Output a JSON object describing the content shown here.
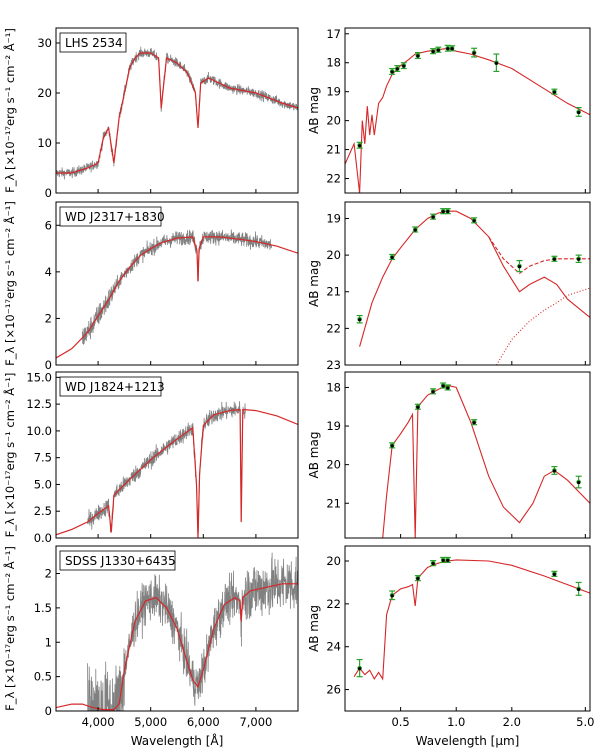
{
  "figure": {
    "left_xlabel": "Wavelength [Å]",
    "right_xlabel": "Wavelength [μm]",
    "left_ylabel": "F_λ [×10⁻¹⁷erg s⁻¹ cm⁻² Å⁻¹]",
    "right_ylabel": "AB mag",
    "colors": {
      "model": "#d62728",
      "spectrum": "#808080",
      "photometry": "#2ca02c",
      "points": "#000000"
    }
  },
  "chart_data": [
    {
      "type": "line",
      "panel": "spectrum",
      "annotation": "LHS 2534",
      "xlim": [
        3200,
        7800
      ],
      "ylim": [
        0,
        33
      ],
      "yticks": [
        0,
        10,
        20,
        30
      ],
      "xticks": [
        4000,
        5000,
        6000,
        7000
      ],
      "xtick_labels": [
        "4,000",
        "5,000",
        "6,000",
        "7,000"
      ],
      "model": {
        "x": [
          3200,
          3500,
          3800,
          4000,
          4100,
          4200,
          4300,
          4400,
          4500,
          4600,
          4700,
          4800,
          5000,
          5150,
          5200,
          5300,
          5500,
          5700,
          5850,
          5900,
          5950,
          6100,
          6300,
          6500,
          7000,
          7500,
          7800
        ],
        "y": [
          4,
          4,
          5,
          6,
          11,
          13,
          6,
          15,
          20,
          25,
          27,
          28,
          28,
          27,
          17,
          27,
          26,
          24,
          20,
          13,
          22,
          23,
          22,
          21,
          20,
          18,
          17
        ]
      },
      "spectrum": {
        "xrange": [
          3200,
          7800
        ]
      }
    },
    {
      "type": "line",
      "panel": "spectrum",
      "annotation": "WD J2317+1830",
      "xlim": [
        3200,
        7800
      ],
      "ylim": [
        0,
        7.0
      ],
      "yticks": [
        0,
        2,
        4,
        6
      ],
      "xticks": [
        4000,
        5000,
        6000,
        7000
      ],
      "xtick_labels": [
        "4,000",
        "5,000",
        "6,000",
        "7,000"
      ],
      "model": {
        "x": [
          3200,
          3500,
          3800,
          4000,
          4200,
          4400,
          4600,
          4800,
          5000,
          5200,
          5500,
          5800,
          5880,
          5900,
          5920,
          6000,
          6300,
          6700,
          7000,
          7400,
          7800
        ],
        "y": [
          0.3,
          0.7,
          1.4,
          2.1,
          2.8,
          3.6,
          4.2,
          4.7,
          5.0,
          5.25,
          5.45,
          5.5,
          4.9,
          3.6,
          5.0,
          5.5,
          5.5,
          5.4,
          5.3,
          5.1,
          4.8
        ]
      },
      "spectrum": {
        "xrange": [
          3700,
          7300
        ]
      }
    },
    {
      "type": "line",
      "panel": "spectrum",
      "annotation": "WD J1824+1213",
      "xlim": [
        3200,
        7800
      ],
      "ylim": [
        0,
        15.5
      ],
      "yticks": [
        0.0,
        2.5,
        5.0,
        7.5,
        10.0,
        12.5,
        15.0
      ],
      "ytick_labels": [
        "0.0",
        "2.5",
        "5.0",
        "7.5",
        "10.0",
        "12.5",
        "15.0"
      ],
      "xticks": [
        4000,
        5000,
        6000,
        7000
      ],
      "xtick_labels": [
        "4,000",
        "5,000",
        "6,000",
        "7,000"
      ],
      "model": {
        "x": [
          3200,
          3500,
          3800,
          4000,
          4200,
          4250,
          4300,
          4500,
          4800,
          5000,
          5300,
          5600,
          5800,
          5870,
          5900,
          5930,
          6000,
          6200,
          6500,
          6700,
          6720,
          6750,
          7000,
          7400,
          7800
        ],
        "y": [
          0.3,
          0.8,
          1.5,
          2.3,
          3.0,
          0.5,
          4.0,
          5.0,
          6.4,
          7.3,
          8.5,
          9.6,
          10.3,
          5.0,
          0,
          6.0,
          10.5,
          11.5,
          11.9,
          12.0,
          1.5,
          12.0,
          11.9,
          11.4,
          10.6
        ]
      },
      "spectrum": {
        "xrange": [
          3800,
          6800
        ]
      }
    },
    {
      "type": "line",
      "panel": "spectrum",
      "annotation": "SDSS J1330+6435",
      "xlim": [
        3200,
        7800
      ],
      "ylim": [
        0,
        2.4
      ],
      "yticks": [
        0.0,
        0.5,
        1.0,
        1.5,
        2.0
      ],
      "xticks": [
        4000,
        5000,
        6000,
        7000
      ],
      "xtick_labels": [
        "4,000",
        "5,000",
        "6,000",
        "7,000"
      ],
      "model": {
        "x": [
          3200,
          3500,
          3700,
          3900,
          4100,
          4300,
          4400,
          4500,
          4700,
          4900,
          5100,
          5300,
          5500,
          5700,
          5800,
          5900,
          6000,
          6200,
          6400,
          6600,
          6700,
          6720,
          6750,
          6900,
          7200,
          7500,
          7800
        ],
        "y": [
          0.05,
          0.1,
          0.1,
          0.05,
          0.02,
          0.02,
          0.1,
          0.6,
          1.3,
          1.6,
          1.65,
          1.5,
          1.2,
          0.7,
          0.45,
          0.35,
          0.6,
          1.2,
          1.55,
          1.65,
          1.6,
          1.3,
          1.65,
          1.75,
          1.8,
          1.85,
          1.85
        ]
      },
      "spectrum": {
        "xrange": [
          3800,
          7800
        ]
      }
    },
    {
      "type": "scatter",
      "panel": "sed",
      "xlim": [
        0.25,
        5.3
      ],
      "xscale": "log",
      "ylim": [
        16.8,
        22.5
      ],
      "yinvert": true,
      "yticks": [
        17,
        18,
        19,
        20,
        21,
        22
      ],
      "xticks": [
        0.5,
        1.0,
        2.0,
        5.0
      ],
      "xtick_labels": [
        "0.5",
        "1.0",
        "2.0",
        "5.0"
      ],
      "model": {
        "x": [
          0.25,
          0.28,
          0.3,
          0.31,
          0.32,
          0.33,
          0.34,
          0.35,
          0.36,
          0.38,
          0.4,
          0.42,
          0.45,
          0.5,
          0.55,
          0.6,
          0.7,
          0.8,
          0.9,
          1.0,
          1.2,
          1.5,
          2.0,
          3.0,
          4.0,
          5.3
        ],
        "y": [
          21.5,
          20.8,
          22.5,
          20.0,
          20.8,
          19.5,
          20.5,
          19.8,
          20.5,
          19.4,
          19.2,
          18.8,
          18.4,
          18.1,
          17.9,
          17.7,
          17.6,
          17.55,
          17.5,
          17.6,
          17.7,
          17.9,
          18.2,
          18.9,
          19.4,
          19.8
        ]
      },
      "photometry": {
        "x": [
          0.3,
          0.45,
          0.48,
          0.52,
          0.62,
          0.75,
          0.8,
          0.9,
          0.95,
          1.25,
          1.65,
          3.4,
          4.6
        ],
        "y": [
          20.85,
          18.3,
          18.2,
          18.1,
          17.75,
          17.6,
          17.55,
          17.5,
          17.5,
          17.65,
          18.0,
          19.0,
          19.7
        ],
        "err": [
          0.1,
          0.1,
          0.1,
          0.1,
          0.1,
          0.05,
          0.05,
          0.1,
          0.05,
          0.15,
          0.3,
          0.08,
          0.15
        ]
      }
    },
    {
      "type": "scatter",
      "panel": "sed",
      "xlim": [
        0.25,
        5.3
      ],
      "xscale": "log",
      "ylim": [
        18.55,
        23.0
      ],
      "yinvert": true,
      "yticks": [
        19,
        20,
        21,
        22,
        23
      ],
      "xticks": [
        0.5,
        1.0,
        2.0,
        5.0
      ],
      "xtick_labels": [
        "0.5",
        "1.0",
        "2.0",
        "5.0"
      ],
      "model": {
        "x": [
          0.3,
          0.35,
          0.4,
          0.45,
          0.5,
          0.6,
          0.7,
          0.8,
          0.9,
          1.0,
          1.2,
          1.5,
          1.8,
          2.2,
          2.5,
          3.0,
          3.5,
          4.0,
          5.3
        ],
        "y": [
          22.5,
          21.3,
          20.6,
          20.1,
          19.8,
          19.3,
          19.0,
          18.85,
          18.8,
          18.8,
          19.0,
          19.5,
          20.3,
          21.0,
          20.8,
          20.6,
          20.8,
          21.2,
          21.7
        ]
      },
      "model_dashed": {
        "x": [
          1.5,
          1.8,
          2.2,
          2.5,
          3.0,
          3.5,
          4.0,
          5.3
        ],
        "y": [
          19.5,
          20.1,
          20.5,
          20.3,
          20.15,
          20.1,
          20.1,
          20.1
        ]
      },
      "model_dotted": {
        "x": [
          1.65,
          2.0,
          2.5,
          3.0,
          3.5,
          4.0,
          5.3
        ],
        "y": [
          23.0,
          22.3,
          21.8,
          21.5,
          21.3,
          21.1,
          20.9
        ]
      },
      "photometry": {
        "x": [
          0.3,
          0.45,
          0.6,
          0.75,
          0.85,
          0.9,
          1.25,
          2.2,
          3.4,
          4.6
        ],
        "y": [
          21.75,
          20.05,
          19.3,
          18.95,
          18.8,
          18.8,
          19.05,
          20.3,
          20.1,
          20.1
        ],
        "err": [
          0.1,
          0.05,
          0.05,
          0.05,
          0.05,
          0.05,
          0.05,
          0.15,
          0.05,
          0.1
        ]
      }
    },
    {
      "type": "scatter",
      "panel": "sed",
      "xlim": [
        0.25,
        5.3
      ],
      "xscale": "log",
      "ylim": [
        17.6,
        21.9
      ],
      "yinvert": true,
      "yticks": [
        18,
        19,
        20,
        21
      ],
      "xticks": [
        0.5,
        1.0,
        2.0,
        5.0
      ],
      "xtick_labels": [
        "0.5",
        "1.0",
        "2.0",
        "5.0"
      ],
      "model": {
        "x": [
          0.4,
          0.42,
          0.45,
          0.5,
          0.55,
          0.58,
          0.6,
          0.62,
          0.7,
          0.8,
          0.9,
          1.0,
          1.2,
          1.5,
          1.8,
          2.2,
          2.6,
          3.0,
          3.4,
          4.0,
          5.3
        ],
        "y": [
          21.9,
          20.8,
          19.5,
          19.2,
          18.9,
          18.7,
          21.9,
          18.5,
          18.2,
          18.05,
          17.95,
          18.0,
          18.9,
          20.3,
          21.1,
          21.5,
          21.0,
          20.3,
          20.15,
          20.4,
          21.0
        ]
      },
      "photometry": {
        "x": [
          0.45,
          0.62,
          0.75,
          0.85,
          0.9,
          1.25,
          3.4,
          4.6
        ],
        "y": [
          19.5,
          18.5,
          18.1,
          17.95,
          18.0,
          18.9,
          20.15,
          20.45
        ],
        "err": [
          0.05,
          0.05,
          0.05,
          0.05,
          0.05,
          0.05,
          0.1,
          0.15
        ]
      }
    },
    {
      "type": "scatter",
      "panel": "sed",
      "xlim": [
        0.25,
        5.3
      ],
      "xscale": "log",
      "ylim": [
        19.3,
        27.0
      ],
      "yinvert": true,
      "yticks": [
        20,
        22,
        24,
        26
      ],
      "xticks": [
        0.5,
        1.0,
        2.0,
        5.0
      ],
      "xtick_labels": [
        "0.5",
        "1.0",
        "2.0",
        "5.0"
      ],
      "model": {
        "x": [
          0.28,
          0.3,
          0.32,
          0.34,
          0.36,
          0.38,
          0.4,
          0.42,
          0.45,
          0.5,
          0.55,
          0.58,
          0.6,
          0.62,
          0.7,
          0.8,
          0.9,
          1.0,
          1.5,
          2.0,
          3.0,
          4.0,
          5.3
        ],
        "y": [
          25.4,
          25.0,
          25.3,
          25.1,
          25.5,
          25.2,
          25.5,
          22.5,
          21.6,
          21.3,
          21.2,
          21.1,
          22.1,
          20.8,
          20.3,
          20.1,
          20.0,
          19.95,
          20.0,
          20.2,
          20.7,
          21.1,
          21.5
        ],
        "ymax_clip": 25.5
      },
      "photometry": {
        "x": [
          0.3,
          0.45,
          0.62,
          0.75,
          0.85,
          0.9,
          3.4,
          4.6
        ],
        "y": [
          25.0,
          21.6,
          20.8,
          20.1,
          19.95,
          19.95,
          20.6,
          21.3
        ],
        "err": [
          0.4,
          0.2,
          0.1,
          0.1,
          0.1,
          0.1,
          0.1,
          0.3
        ]
      }
    }
  ]
}
